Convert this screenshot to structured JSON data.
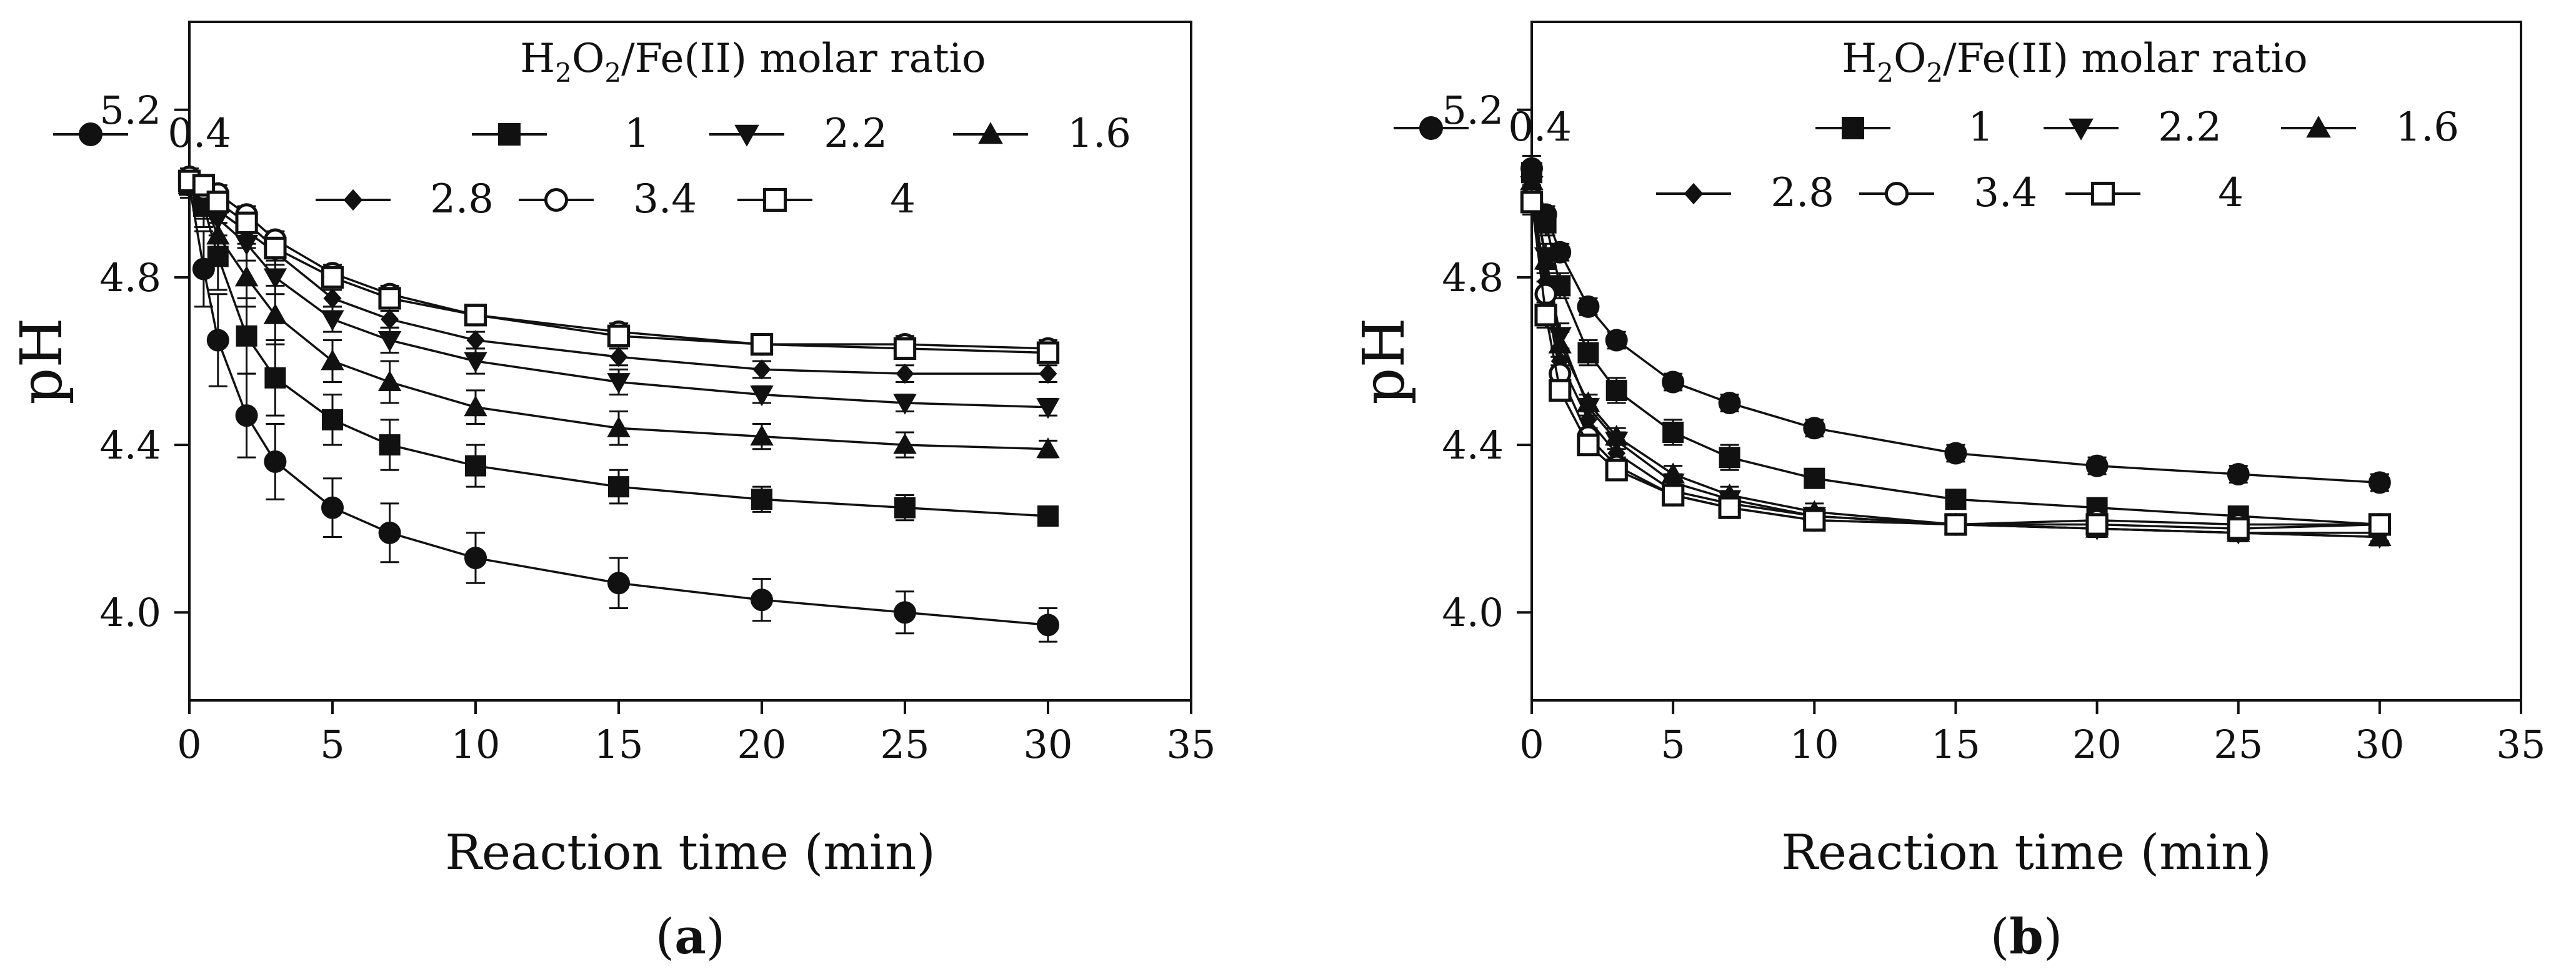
{
  "chart_data": [
    {
      "type": "line",
      "panel_label": "a",
      "title": "",
      "xlabel": "Reaction time (min)",
      "ylabel": "pH",
      "xlim": [
        0,
        35
      ],
      "ylim": [
        3.79,
        5.41
      ],
      "xticks": [
        0,
        5,
        10,
        15,
        20,
        25,
        30,
        35
      ],
      "yticks": [
        4.0,
        4.4,
        4.8,
        5.2
      ],
      "ytick_labels": [
        "4.0",
        "4.4",
        "4.8",
        "5.2"
      ],
      "legend_title": "H2O2/Fe(II) molar ratio",
      "x": [
        0,
        0.5,
        1,
        2,
        3,
        5,
        7,
        10,
        15,
        20,
        25,
        30
      ],
      "series": [
        {
          "name": "0.4",
          "marker": "circle-filled",
          "values": [
            5.02,
            4.82,
            4.65,
            4.47,
            4.36,
            4.25,
            4.19,
            4.13,
            4.07,
            4.03,
            4.0,
            3.97
          ],
          "errors": [
            0.03,
            0.09,
            0.11,
            0.1,
            0.09,
            0.07,
            0.07,
            0.06,
            0.06,
            0.05,
            0.05,
            0.04
          ]
        },
        {
          "name": "1",
          "marker": "square-filled",
          "values": [
            5.02,
            4.97,
            4.85,
            4.66,
            4.56,
            4.46,
            4.4,
            4.35,
            4.3,
            4.27,
            4.25,
            4.23
          ],
          "errors": [
            0.02,
            0.05,
            0.08,
            0.09,
            0.09,
            0.06,
            0.06,
            0.05,
            0.04,
            0.03,
            0.03,
            0.02
          ]
        },
        {
          "name": "2.2",
          "marker": "triangle-down-filled",
          "values": [
            5.03,
            5.0,
            4.94,
            4.88,
            4.8,
            4.7,
            4.65,
            4.6,
            4.55,
            4.52,
            4.5,
            4.49
          ],
          "errors": [
            0.02,
            0.03,
            0.04,
            0.04,
            0.04,
            0.03,
            0.03,
            0.03,
            0.03,
            0.02,
            0.02,
            0.02
          ]
        },
        {
          "name": "1.6",
          "marker": "triangle-up-filled",
          "values": [
            5.02,
            4.98,
            4.9,
            4.8,
            4.71,
            4.6,
            4.55,
            4.49,
            4.44,
            4.42,
            4.4,
            4.39
          ],
          "errors": [
            0.02,
            0.04,
            0.06,
            0.07,
            0.07,
            0.05,
            0.05,
            0.04,
            0.04,
            0.03,
            0.03,
            0.02
          ]
        },
        {
          "name": "2.8",
          "marker": "diamond-filled",
          "values": [
            5.03,
            5.0,
            4.96,
            4.91,
            4.86,
            4.75,
            4.7,
            4.65,
            4.61,
            4.58,
            4.57,
            4.57
          ],
          "errors": [
            0.02,
            0.02,
            0.03,
            0.03,
            0.03,
            0.02,
            0.02,
            0.02,
            0.02,
            0.02,
            0.02,
            0.02
          ]
        },
        {
          "name": "3.4",
          "marker": "circle-open",
          "values": [
            5.04,
            5.01,
            5.0,
            4.95,
            4.89,
            4.81,
            4.76,
            4.71,
            4.67,
            4.64,
            4.64,
            4.63
          ],
          "errors": [
            0.02,
            0.02,
            0.02,
            0.02,
            0.02,
            0.02,
            0.02,
            0.02,
            0.02,
            0.02,
            0.02,
            0.02
          ]
        },
        {
          "name": "4",
          "marker": "square-open",
          "values": [
            5.03,
            5.02,
            4.98,
            4.93,
            4.87,
            4.8,
            4.75,
            4.71,
            4.66,
            4.64,
            4.63,
            4.62
          ],
          "errors": [
            0.02,
            0.02,
            0.02,
            0.02,
            0.02,
            0.02,
            0.02,
            0.02,
            0.02,
            0.02,
            0.02,
            0.02
          ]
        }
      ]
    },
    {
      "type": "line",
      "panel_label": "b",
      "title": "",
      "xlabel": "Reaction time (min)",
      "ylabel": "pH",
      "xlim": [
        0,
        35
      ],
      "ylim": [
        3.79,
        5.41
      ],
      "xticks": [
        0,
        5,
        10,
        15,
        20,
        25,
        30,
        35
      ],
      "yticks": [
        4.0,
        4.4,
        4.8,
        5.2
      ],
      "ytick_labels": [
        "4.0",
        "4.4",
        "4.8",
        "5.2"
      ],
      "legend_title": "H2O2/Fe(II) molar ratio",
      "x": [
        0,
        0.5,
        1,
        2,
        3,
        5,
        7,
        10,
        15,
        20,
        25,
        30
      ],
      "series": [
        {
          "name": "0.4",
          "marker": "circle-filled",
          "values": [
            5.06,
            4.95,
            4.86,
            4.73,
            4.65,
            4.55,
            4.5,
            4.44,
            4.38,
            4.35,
            4.33,
            4.31
          ],
          "errors": [
            0.03,
            0.02,
            0.02,
            0.02,
            0.02,
            0.02,
            0.02,
            0.02,
            0.02,
            0.02,
            0.02,
            0.02
          ]
        },
        {
          "name": "1",
          "marker": "square-filled",
          "values": [
            5.05,
            4.93,
            4.78,
            4.62,
            4.53,
            4.43,
            4.37,
            4.32,
            4.27,
            4.25,
            4.23,
            4.21
          ],
          "errors": [
            0.04,
            0.03,
            0.03,
            0.03,
            0.03,
            0.03,
            0.03,
            0.02,
            0.02,
            0.02,
            0.02,
            0.02
          ]
        },
        {
          "name": "2.2",
          "marker": "triangle-down-filled",
          "values": [
            5.02,
            4.85,
            4.66,
            4.49,
            4.41,
            4.31,
            4.27,
            4.23,
            4.21,
            4.2,
            4.19,
            4.18
          ],
          "errors": [
            0.03,
            0.03,
            0.03,
            0.02,
            0.02,
            0.02,
            0.02,
            0.02,
            0.02,
            0.02,
            0.02,
            0.02
          ]
        },
        {
          "name": "1.6",
          "marker": "triangle-up-filled",
          "values": [
            5.03,
            4.84,
            4.64,
            4.5,
            4.42,
            4.33,
            4.28,
            4.24,
            4.21,
            4.2,
            4.19,
            4.18
          ],
          "errors": [
            0.03,
            0.03,
            0.03,
            0.02,
            0.02,
            0.02,
            0.02,
            0.02,
            0.02,
            0.02,
            0.02,
            0.02
          ]
        },
        {
          "name": "2.8",
          "marker": "diamond-filled",
          "values": [
            5.0,
            4.79,
            4.6,
            4.46,
            4.38,
            4.29,
            4.26,
            4.23,
            4.21,
            4.2,
            4.19,
            4.19
          ],
          "errors": [
            0.03,
            0.03,
            0.03,
            0.02,
            0.02,
            0.02,
            0.02,
            0.02,
            0.02,
            0.02,
            0.02,
            0.02
          ]
        },
        {
          "name": "3.4",
          "marker": "circle-open",
          "values": [
            4.99,
            4.76,
            4.57,
            4.42,
            4.35,
            4.28,
            4.25,
            4.22,
            4.21,
            4.22,
            4.21,
            4.21
          ],
          "errors": [
            0.03,
            0.03,
            0.02,
            0.02,
            0.02,
            0.02,
            0.02,
            0.02,
            0.02,
            0.02,
            0.02,
            0.02
          ]
        },
        {
          "name": "4",
          "marker": "square-open",
          "values": [
            4.98,
            4.71,
            4.53,
            4.4,
            4.34,
            4.28,
            4.25,
            4.22,
            4.21,
            4.21,
            4.2,
            4.21
          ],
          "errors": [
            0.03,
            0.03,
            0.02,
            0.02,
            0.02,
            0.02,
            0.02,
            0.02,
            0.02,
            0.02,
            0.02,
            0.02
          ]
        }
      ]
    }
  ]
}
